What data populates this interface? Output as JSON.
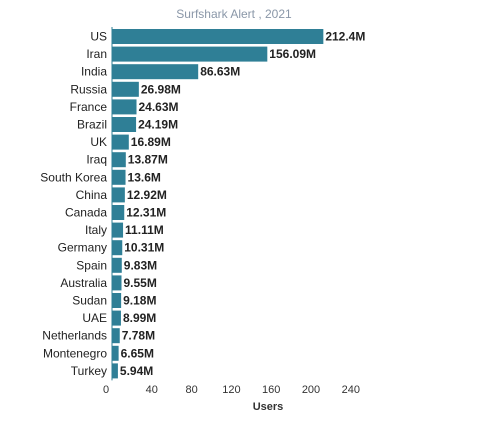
{
  "chart_data": {
    "type": "bar",
    "orientation": "horizontal",
    "title": "Surfshark Alert , 2021",
    "xlabel": "Users",
    "categories": [
      "US",
      "Iran",
      "India",
      "Russia",
      "France",
      "Brazil",
      "UK",
      "Iraq",
      "South Korea",
      "China",
      "Canada",
      "Italy",
      "Germany",
      "Spain",
      "Australia",
      "Sudan",
      "UAE",
      "Netherlands",
      "Montenegro",
      "Turkey"
    ],
    "values": [
      212.4,
      156.09,
      86.63,
      26.98,
      24.63,
      24.19,
      16.89,
      13.87,
      13.6,
      12.92,
      12.31,
      11.11,
      10.31,
      9.83,
      9.55,
      9.18,
      8.99,
      7.78,
      6.65,
      5.94
    ],
    "value_labels": [
      "212.4M",
      "156.09M",
      "86.63M",
      "26.98M",
      "24.63M",
      "24.19M",
      "16.89M",
      "13.87M",
      "13.6M",
      "12.92M",
      "12.31M",
      "11.11M",
      "10.31M",
      "9.83M",
      "9.55M",
      "9.18M",
      "8.99M",
      "7.78M",
      "6.65M",
      "5.94M"
    ],
    "xticks": [
      0,
      40,
      80,
      120,
      160,
      200,
      240
    ],
    "xlim": [
      0,
      240
    ],
    "grid": false,
    "bar_color": "#2f7f96"
  }
}
